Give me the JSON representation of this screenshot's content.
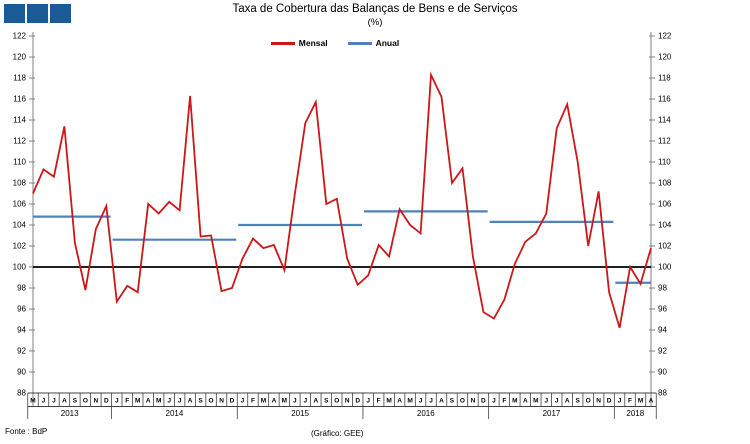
{
  "header": {
    "title": "Taxa de Cobertura das Balanças de Bens e de Serviços",
    "subtitle": "(%)"
  },
  "logo": {
    "color": "#1a5a96"
  },
  "legend": {
    "items": [
      {
        "label": "Mensal",
        "color": "#cc1719"
      },
      {
        "label": "Anual",
        "color": "#4f81bd"
      }
    ]
  },
  "footer": {
    "source": "Fonte : BdP",
    "credit": "(Gráfico: GEE)"
  },
  "chart_data": {
    "type": "line",
    "title": "Taxa de Cobertura das Balanças de Bens e de Serviços",
    "ylabel": "(%)",
    "ylim": [
      88,
      122
    ],
    "ytick_step": 2,
    "y_axis_mirrored": true,
    "grid": false,
    "legend_position": "top-center",
    "reference_line": 100,
    "series_names": [
      "Mensal",
      "Anual"
    ],
    "years": [
      {
        "year": "2013",
        "months": [
          "M",
          "J",
          "J",
          "A",
          "S",
          "O",
          "N",
          "D"
        ],
        "mensal": [
          107.0,
          109.3,
          108.6,
          113.4,
          102.3,
          97.8,
          103.6,
          105.8
        ],
        "anual": 104.8
      },
      {
        "year": "2014",
        "months": [
          "J",
          "F",
          "M",
          "A",
          "M",
          "J",
          "J",
          "A",
          "S",
          "O",
          "N",
          "D"
        ],
        "mensal": [
          96.7,
          98.2,
          97.6,
          106.0,
          105.1,
          106.2,
          105.4,
          116.3,
          102.9,
          103.0,
          97.7,
          98.0
        ],
        "anual": 102.6
      },
      {
        "year": "2015",
        "months": [
          "J",
          "F",
          "M",
          "A",
          "M",
          "J",
          "J",
          "A",
          "S",
          "O",
          "N",
          "D"
        ],
        "mensal": [
          100.8,
          102.7,
          101.8,
          102.1,
          99.7,
          107.0,
          113.7,
          115.7,
          106.0,
          106.5,
          100.8,
          98.3
        ],
        "anual": 104.0
      },
      {
        "year": "2016",
        "months": [
          "J",
          "F",
          "M",
          "A",
          "M",
          "J",
          "J",
          "A",
          "S",
          "O",
          "N",
          "D"
        ],
        "mensal": [
          99.2,
          102.1,
          101.0,
          105.5,
          104.0,
          103.2,
          118.3,
          116.2,
          108.0,
          109.4,
          101.0,
          95.7
        ],
        "anual": 105.3
      },
      {
        "year": "2017",
        "months": [
          "J",
          "F",
          "M",
          "A",
          "M",
          "J",
          "J",
          "A",
          "S",
          "O",
          "N",
          "D"
        ],
        "mensal": [
          95.1,
          96.9,
          100.3,
          102.4,
          103.2,
          105.1,
          113.2,
          115.5,
          110.0,
          102.0,
          107.2,
          97.6
        ],
        "anual": 104.3
      },
      {
        "year": "2018",
        "months": [
          "J",
          "F",
          "M",
          "A"
        ],
        "mensal": [
          94.2,
          100.0,
          98.4,
          101.8
        ],
        "anual": 98.5
      }
    ],
    "colors": {
      "mensal": "#cc1719",
      "anual": "#4f81bd",
      "reference": "#000000",
      "axis": "#808080",
      "box": "#404040"
    }
  }
}
